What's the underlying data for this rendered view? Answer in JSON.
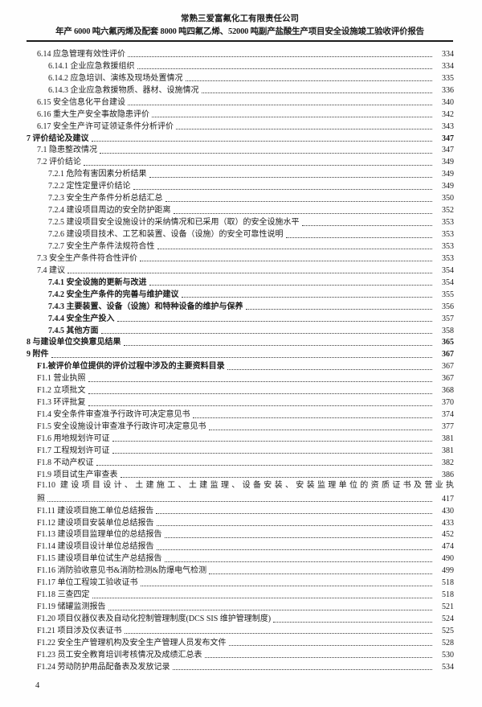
{
  "header": {
    "company": "常熟三爱富氟化工有限责任公司",
    "report_title": "年产 6000 吨六氟丙烯及配套 8000 吨四氟乙烯、52000 吨副产盐酸生产项目安全设施竣工验收评价报告"
  },
  "footer": {
    "page_number": "4"
  },
  "toc": {
    "entries": [
      {
        "label": "6.14 应急管理有效性评价",
        "page": "334",
        "level": 2
      },
      {
        "label": "6.14.1 企业应急救援组织",
        "page": "334",
        "level": 3
      },
      {
        "label": "6.14.2 应急培训、演练及现场处置情况",
        "page": "335",
        "level": 3
      },
      {
        "label": "6.14.3 企业应急救援物质、器材、设施情况",
        "page": "336",
        "level": 3
      },
      {
        "label": "6.15 安全信息化平台建设",
        "page": "340",
        "level": 2
      },
      {
        "label": "6.16 重大生产安全事故隐患评价",
        "page": "342",
        "level": 2
      },
      {
        "label": "6.17 安全生产许可证领证条件分析评价",
        "page": "343",
        "level": 2
      },
      {
        "label": "7 评价结论及建议",
        "page": "347",
        "level": 1,
        "bold": true,
        "bold_page": true
      },
      {
        "label": "7.1 隐患整改情况",
        "page": "347",
        "level": 2
      },
      {
        "label": "7.2 评价结论",
        "page": "349",
        "level": 2
      },
      {
        "label": "7.2.1 危险有害因素分析结果",
        "page": "349",
        "level": 3
      },
      {
        "label": "7.2.2 定性定量评价结论",
        "page": "349",
        "level": 3
      },
      {
        "label": "7.2.3 安全生产条件分析总结汇总",
        "page": "350",
        "level": 3
      },
      {
        "label": "7.2.4 建设项目周边的安全防护距离",
        "page": "352",
        "level": 3
      },
      {
        "label": "7.2.5 建设项目安全设施设计的采纳情况和已采用（取）的安全设施水平",
        "page": "353",
        "level": 3
      },
      {
        "label": "7.2.6 建设项目技术、工艺和装置、设备（设施）的安全可靠性说明",
        "page": "353",
        "level": 3
      },
      {
        "label": "7.2.7 安全生产条件法规符合性",
        "page": "353",
        "level": 3
      },
      {
        "label": "7.3 安全生产条件符合性评价",
        "page": "353",
        "level": 2
      },
      {
        "label": "7.4 建议",
        "page": "354",
        "level": 2
      },
      {
        "label": "7.4.1 安全设施的更新与改进",
        "page": "354",
        "level": 3,
        "bold": true
      },
      {
        "label": "7.4.2 安全生产条件的完善与维护建议",
        "page": "355",
        "level": 3,
        "bold": true
      },
      {
        "label": "7.4.3 主要装置、设备（设施）和特种设备的维护与保养",
        "page": "356",
        "level": 3,
        "bold": true
      },
      {
        "label": "7.4.4 安全生产投入",
        "page": "357",
        "level": 3,
        "bold": true
      },
      {
        "label": "7.4.5 其他方面",
        "page": "358",
        "level": 3,
        "bold": true
      },
      {
        "label": "8 与建设单位交换意见结果",
        "page": "365",
        "level": 1,
        "bold": true,
        "bold_page": true
      },
      {
        "label": "9 附件",
        "page": "367",
        "level": 1,
        "bold": true,
        "bold_page": true
      },
      {
        "label": "F1.被评价单位提供的评价过程中涉及的主要资料目录",
        "page": "367",
        "level": 2,
        "bold": true
      },
      {
        "label": "F1.1 营业执照",
        "page": "367",
        "level": 2
      },
      {
        "label": "F1.2 立项批文",
        "page": "368",
        "level": 2
      },
      {
        "label": "F1.3 环评批复",
        "page": "370",
        "level": 2
      },
      {
        "label": "F1.4 安全条件审查准予行政许可决定意见书",
        "page": "374",
        "level": 2
      },
      {
        "label": "F1.5 安全设施设计审查准予行政许可决定意见书",
        "page": "377",
        "level": 2
      },
      {
        "label": "F1.6 用地规划许可证",
        "page": "381",
        "level": 2
      },
      {
        "label": "F1.7 工程规划许可证",
        "page": "381",
        "level": 2
      },
      {
        "label": "F1.8 不动产权证",
        "page": "382",
        "level": 2
      },
      {
        "label": "F1.9 项目试生产审查表",
        "page": "386",
        "level": 2
      },
      {
        "label": "F1.10 建设项目设计、土建施工、土建监理、设备安装、安装监理单位的资质证书及营业执照",
        "page": "417",
        "level": 2,
        "wrap": [
          "F1.10 建设项目设计、土建施工、土建监理、设备安装、安装监理单位的资质证书及营业执",
          "照"
        ]
      },
      {
        "label": "F1.11 建设项目施工单位总结报告",
        "page": "430",
        "level": 2
      },
      {
        "label": "F1.12 建设项目安装单位总结报告",
        "page": "433",
        "level": 2
      },
      {
        "label": "F1.13 建设项目监理单位的总结报告",
        "page": "452",
        "level": 2
      },
      {
        "label": "F1.14 建设项目设计单位总结报告",
        "page": "474",
        "level": 2
      },
      {
        "label": "F1.15 建设项目单位试生产总结报告",
        "page": "490",
        "level": 2
      },
      {
        "label": "F1.16 消防验收意见书&消防检测&防爆电气检测",
        "page": "499",
        "level": 2
      },
      {
        "label": "F1.17 单位工程竣工验收证书",
        "page": "518",
        "level": 2
      },
      {
        "label": "F1.18 三查四定",
        "page": "518",
        "level": 2
      },
      {
        "label": "F1.19 储罐监测报告",
        "page": "521",
        "level": 2
      },
      {
        "label": "F1.20 项目仪器仪表及自动化控制管理制度(DCS SIS 维护管理制度)",
        "page": "524",
        "level": 2
      },
      {
        "label": "F1.21 项目涉及仪表证书",
        "page": "525",
        "level": 2
      },
      {
        "label": "F1.22 安全生产管理机构及安全生产管理人员发布文件",
        "page": "528",
        "level": 2
      },
      {
        "label": "F1.23 员工安全教育培训考核情况及成绩汇总表",
        "page": "530",
        "level": 2
      },
      {
        "label": "F1.24 劳动防护用品配备表及发放记录",
        "page": "534",
        "level": 2
      }
    ]
  }
}
